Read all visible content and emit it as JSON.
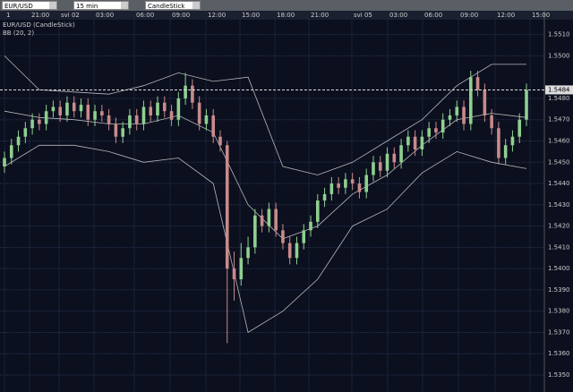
{
  "toolbar": {
    "symbol": "EUR/USD",
    "interval": "15 min",
    "chart_style": "CandleStick"
  },
  "chart_data": {
    "type": "candlestick",
    "title": "EUR/USD (CandleStick)",
    "indicator": "BB (20, 2)",
    "time_labels": [
      "1",
      "21:00",
      "svi 02",
      "03:00",
      "06:00",
      "09:00",
      "12:00",
      "15:00",
      "18:00",
      "21:00",
      "svi 05",
      "03:00",
      "06:00",
      "09:00",
      "12:00",
      "15:00"
    ],
    "ylim": [
      1.5342,
      1.5517
    ],
    "yticks": [
      {
        "value": 1.551,
        "label": "1.5510"
      },
      {
        "value": 1.55,
        "label": "1.5500"
      },
      {
        "value": 1.548,
        "label": "1.5480"
      },
      {
        "value": 1.547,
        "label": "1.5470"
      },
      {
        "value": 1.546,
        "label": "1.5460"
      },
      {
        "value": 1.545,
        "label": "1.5450"
      },
      {
        "value": 1.544,
        "label": "1.5440"
      },
      {
        "value": 1.543,
        "label": "1.5430"
      },
      {
        "value": 1.542,
        "label": "1.5420"
      },
      {
        "value": 1.541,
        "label": "1.5410"
      },
      {
        "value": 1.54,
        "label": "1.5400"
      },
      {
        "value": 1.539,
        "label": "1.5390"
      },
      {
        "value": 1.538,
        "label": "1.5380"
      },
      {
        "value": 1.537,
        "label": "1.5370"
      },
      {
        "value": 1.536,
        "label": "1.5360"
      },
      {
        "value": 1.535,
        "label": "1.5350"
      }
    ],
    "current_price": 1.5484,
    "up_color": "#8fcf8f",
    "down_color": "#c98a8a",
    "band_color": "#b8b8b8",
    "candles": [
      [
        1.5448,
        1.5455,
        1.5445,
        1.5452
      ],
      [
        1.5452,
        1.5461,
        1.5449,
        1.5458
      ],
      [
        1.5458,
        1.5465,
        1.5455,
        1.5462
      ],
      [
        1.5462,
        1.5469,
        1.5459,
        1.5466
      ],
      [
        1.5466,
        1.5473,
        1.5463,
        1.547
      ],
      [
        1.547,
        1.5473,
        1.5465,
        1.5468
      ],
      [
        1.5468,
        1.5477,
        1.5465,
        1.5474
      ],
      [
        1.5474,
        1.5479,
        1.5471,
        1.5476
      ],
      [
        1.5476,
        1.5479,
        1.5469,
        1.5472
      ],
      [
        1.5472,
        1.5481,
        1.5469,
        1.5478
      ],
      [
        1.5478,
        1.5481,
        1.5471,
        1.5474
      ],
      [
        1.5474,
        1.548,
        1.5471,
        1.5477
      ],
      [
        1.5477,
        1.548,
        1.5467,
        1.547
      ],
      [
        1.547,
        1.5477,
        1.5467,
        1.5474
      ],
      [
        1.5474,
        1.5477,
        1.5469,
        1.5472
      ],
      [
        1.5472,
        1.5475,
        1.5465,
        1.5468
      ],
      [
        1.5468,
        1.5471,
        1.5459,
        1.5462
      ],
      [
        1.5462,
        1.5469,
        1.5459,
        1.5466
      ],
      [
        1.5466,
        1.5475,
        1.5463,
        1.5472
      ],
      [
        1.5472,
        1.5475,
        1.5465,
        1.5468
      ],
      [
        1.5468,
        1.5479,
        1.5465,
        1.5476
      ],
      [
        1.5476,
        1.5479,
        1.5469,
        1.5472
      ],
      [
        1.5472,
        1.5481,
        1.5469,
        1.5478
      ],
      [
        1.5478,
        1.5481,
        1.5471,
        1.5474
      ],
      [
        1.5474,
        1.5477,
        1.5467,
        1.547
      ],
      [
        1.547,
        1.5483,
        1.5467,
        1.548
      ],
      [
        1.548,
        1.5492,
        1.5477,
        1.5486
      ],
      [
        1.5486,
        1.5489,
        1.5475,
        1.5478
      ],
      [
        1.5478,
        1.5481,
        1.5465,
        1.5468
      ],
      [
        1.5468,
        1.5475,
        1.5465,
        1.5472
      ],
      [
        1.5472,
        1.5475,
        1.5459,
        1.5462
      ],
      [
        1.5462,
        1.5465,
        1.5455,
        1.5458
      ],
      [
        1.5458,
        1.546,
        1.5365,
        1.54
      ],
      [
        1.54,
        1.5408,
        1.5385,
        1.5395
      ],
      [
        1.5395,
        1.5412,
        1.5392,
        1.5405
      ],
      [
        1.5405,
        1.5415,
        1.5402,
        1.541
      ],
      [
        1.541,
        1.5428,
        1.5407,
        1.5425
      ],
      [
        1.5425,
        1.5428,
        1.5417,
        1.542
      ],
      [
        1.542,
        1.5431,
        1.5417,
        1.5428
      ],
      [
        1.5428,
        1.5431,
        1.5415,
        1.5418
      ],
      [
        1.5418,
        1.5421,
        1.5409,
        1.5412
      ],
      [
        1.5412,
        1.5415,
        1.5402,
        1.5405
      ],
      [
        1.5405,
        1.5415,
        1.5402,
        1.5412
      ],
      [
        1.5412,
        1.5421,
        1.5409,
        1.5418
      ],
      [
        1.5418,
        1.5425,
        1.5415,
        1.5422
      ],
      [
        1.5422,
        1.5435,
        1.5419,
        1.5432
      ],
      [
        1.5432,
        1.5438,
        1.5429,
        1.5435
      ],
      [
        1.5435,
        1.5443,
        1.5432,
        1.544
      ],
      [
        1.544,
        1.5443,
        1.5435,
        1.5438
      ],
      [
        1.5438,
        1.5445,
        1.5435,
        1.5442
      ],
      [
        1.5442,
        1.5445,
        1.5437,
        1.544
      ],
      [
        1.544,
        1.5443,
        1.5433,
        1.5436
      ],
      [
        1.5436,
        1.5447,
        1.5433,
        1.5444
      ],
      [
        1.5444,
        1.5453,
        1.5441,
        1.545
      ],
      [
        1.545,
        1.5453,
        1.5443,
        1.5446
      ],
      [
        1.5446,
        1.5457,
        1.5443,
        1.5454
      ],
      [
        1.5454,
        1.5457,
        1.5447,
        1.545
      ],
      [
        1.545,
        1.5461,
        1.5447,
        1.5458
      ],
      [
        1.5458,
        1.5465,
        1.5455,
        1.5462
      ],
      [
        1.5462,
        1.5465,
        1.5453,
        1.5456
      ],
      [
        1.5456,
        1.5465,
        1.5453,
        1.5462
      ],
      [
        1.5462,
        1.5469,
        1.5459,
        1.5466
      ],
      [
        1.5466,
        1.5469,
        1.5461,
        1.5464
      ],
      [
        1.5464,
        1.5473,
        1.5461,
        1.547
      ],
      [
        1.547,
        1.5475,
        1.5467,
        1.5472
      ],
      [
        1.5472,
        1.5479,
        1.5469,
        1.5476
      ],
      [
        1.5476,
        1.5479,
        1.5465,
        1.5468
      ],
      [
        1.5468,
        1.5493,
        1.5465,
        1.549
      ],
      [
        1.549,
        1.5493,
        1.5481,
        1.5484
      ],
      [
        1.5484,
        1.5487,
        1.5469,
        1.5472
      ],
      [
        1.5472,
        1.5475,
        1.5463,
        1.5466
      ],
      [
        1.5466,
        1.5469,
        1.5449,
        1.5452
      ],
      [
        1.5452,
        1.5461,
        1.5449,
        1.5458
      ],
      [
        1.5458,
        1.5465,
        1.5455,
        1.5462
      ],
      [
        1.5462,
        1.5473,
        1.5459,
        1.547
      ],
      [
        1.547,
        1.5487,
        1.5467,
        1.5484
      ]
    ],
    "bands": {
      "x": [
        0,
        5,
        10,
        15,
        20,
        25,
        30,
        35,
        40,
        45,
        50,
        55,
        60,
        65,
        70,
        75
      ],
      "upper": [
        1.55,
        1.5484,
        1.5483,
        1.5482,
        1.5486,
        1.5492,
        1.5488,
        1.549,
        1.5448,
        1.5444,
        1.545,
        1.546,
        1.547,
        1.5486,
        1.5496,
        1.5496
      ],
      "middle": [
        1.5474,
        1.5471,
        1.547,
        1.5468,
        1.5468,
        1.5472,
        1.5464,
        1.543,
        1.5414,
        1.542,
        1.5435,
        1.5444,
        1.5458,
        1.547,
        1.5473,
        1.5471
      ],
      "lower": [
        1.5448,
        1.5458,
        1.5458,
        1.5455,
        1.545,
        1.5452,
        1.544,
        1.537,
        1.538,
        1.5395,
        1.542,
        1.5428,
        1.5445,
        1.5455,
        1.545,
        1.5447
      ]
    }
  }
}
